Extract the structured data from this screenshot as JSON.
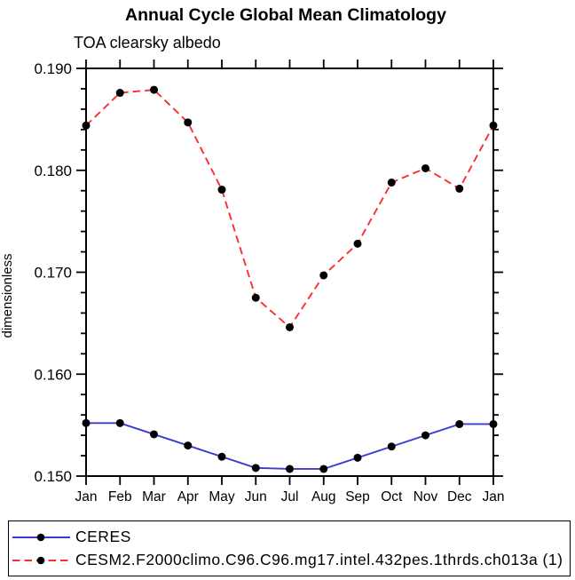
{
  "header": {
    "title": "Annual Cycle Global Mean Climatology",
    "subtitle": "TOA clearsky albedo"
  },
  "chart_data": {
    "type": "line",
    "title": "Annual Cycle Global Mean Climatology",
    "subtitle": "TOA clearsky albedo",
    "xlabel": "",
    "ylabel": "dimensionless",
    "categories": [
      "Jan",
      "Feb",
      "Mar",
      "Apr",
      "May",
      "Jun",
      "Jul",
      "Aug",
      "Sep",
      "Oct",
      "Nov",
      "Dec",
      "Jan"
    ],
    "ylim": [
      0.15,
      0.19
    ],
    "y_major_ticks": [
      0.15,
      0.16,
      0.17,
      0.18,
      0.19
    ],
    "y_tick_labels": [
      "0.150",
      "0.160",
      "0.170",
      "0.180",
      "0.190"
    ],
    "y_minor_step": 0.002,
    "grid": false,
    "legend_position": "bottom",
    "frame_color": "#000000",
    "marker": "circle",
    "marker_color": "#000000",
    "series": [
      {
        "name": "CERES",
        "color": "#3b3bd1",
        "line_style": "solid",
        "values": [
          0.1552,
          0.1552,
          0.1541,
          0.153,
          0.1519,
          0.1508,
          0.1507,
          0.1507,
          0.1518,
          0.1529,
          0.154,
          0.1551,
          0.1551
        ]
      },
      {
        "name": "CESM2.F2000climo.C96.C96.mg17.intel.432pes.1thrds.ch013a (1)",
        "color": "#fb2e2e",
        "line_style": "dashed",
        "values": [
          0.1844,
          0.1876,
          0.1879,
          0.1847,
          0.1781,
          0.1675,
          0.1646,
          0.1697,
          0.1728,
          0.1788,
          0.1802,
          0.1782,
          0.1844
        ]
      }
    ]
  }
}
